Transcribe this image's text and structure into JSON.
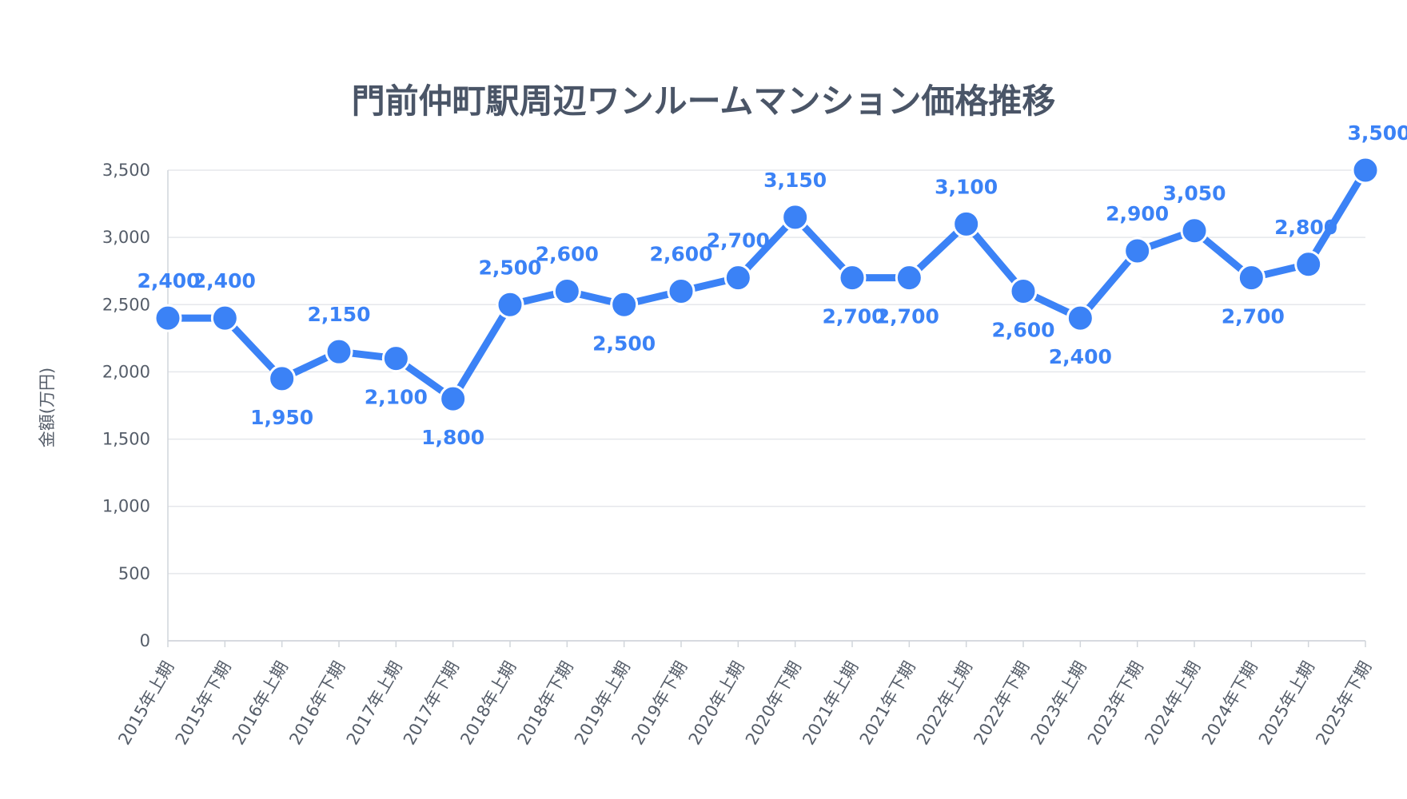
{
  "chart_data": {
    "type": "line",
    "title": "門前仲町駅周辺ワンルームマンション価格推移",
    "ylabel": "金額(万円)",
    "categories": [
      "2015年上期",
      "2015年下期",
      "2016年上期",
      "2016年下期",
      "2017年上期",
      "2017年下期",
      "2018年上期",
      "2018年下期",
      "2019年上期",
      "2019年下期",
      "2020年上期",
      "2020年下期",
      "2021年上期",
      "2021年下期",
      "2022年上期",
      "2022年下期",
      "2023年上期",
      "2023年下期",
      "2024年上期",
      "2024年下期",
      "2025年上期",
      "2025年下期"
    ],
    "values": [
      2400,
      2400,
      1950,
      2150,
      2100,
      1800,
      2500,
      2600,
      2500,
      2600,
      2700,
      3150,
      2700,
      2700,
      3100,
      2600,
      2400,
      2900,
      3050,
      2700,
      2800,
      3500
    ],
    "label_positions": [
      "above",
      "above",
      "below",
      "above",
      "below",
      "below",
      "above",
      "above",
      "below",
      "above",
      "above",
      "above",
      "below",
      "below",
      "above",
      "below",
      "below",
      "above",
      "above",
      "below",
      "above",
      "above"
    ],
    "ylim": [
      0,
      3500
    ],
    "yticks": [
      0,
      500,
      1000,
      1500,
      2000,
      2500,
      3000,
      3500
    ],
    "grid": true,
    "colors": {
      "series": "#3b82f6",
      "title": "#4a5567",
      "axis_text": "#555d69",
      "grid": "#e5e7eb"
    }
  }
}
